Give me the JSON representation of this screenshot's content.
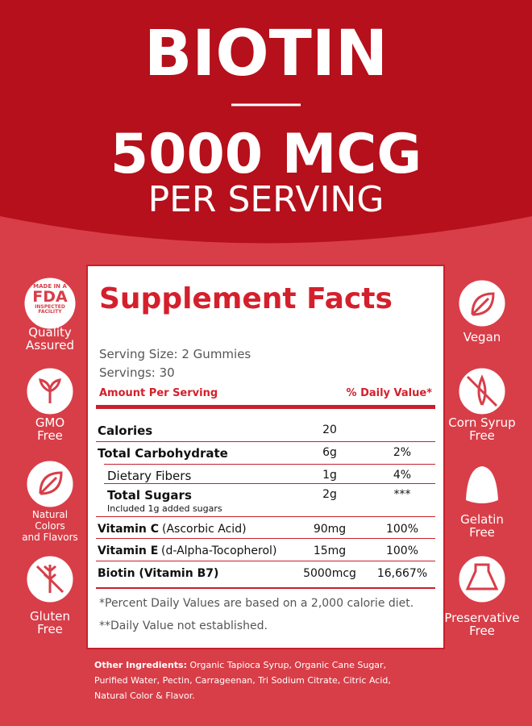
{
  "header": {
    "title": "BIOTIN",
    "dose": "5000 MCG",
    "subtitle": "PER SERVING"
  },
  "left_badges": [
    {
      "seal": [
        "MADE IN A",
        "FDA",
        "INSPECTED FACILITY"
      ],
      "label": [
        "Quality",
        "Assured"
      ]
    },
    {
      "label": [
        "GMO",
        "Free"
      ]
    },
    {
      "label": [
        "Natural",
        "Colors",
        "and Flavors"
      ]
    },
    {
      "label": [
        "Gluten",
        "Free"
      ]
    }
  ],
  "right_badges": [
    {
      "label": [
        "Vegan"
      ]
    },
    {
      "label": [
        "Corn Syrup",
        "Free"
      ]
    },
    {
      "label": [
        "Gelatin",
        "Free"
      ]
    },
    {
      "label": [
        "Preservative",
        "Free"
      ]
    }
  ],
  "facts": {
    "title": "Supplement Facts",
    "serving_size": "Serving Size: 2 Gummies",
    "servings": "Servings: 30",
    "amount_header": "Amount Per Serving",
    "dv_header": "% Daily Value*",
    "rows": [
      {
        "name": "Calories",
        "amount": "20"
      },
      {
        "name": "Total Carbohydrate",
        "amount": "6g",
        "dv": "2%"
      },
      {
        "name": "Dietary Fibers",
        "amount": "1g",
        "dv": "4%"
      },
      {
        "name": "Total Sugars",
        "amount": "2g",
        "dv": "***",
        "note": "Included 1g added sugars"
      },
      {
        "name": "Vitamin C",
        "detail": "(Ascorbic Acid)",
        "amount": "90mg",
        "dv": "100%"
      },
      {
        "name": "Vitamin E",
        "detail": "(d-Alpha-Tocopherol)",
        "amount": "15mg",
        "dv": "100%"
      },
      {
        "name": "Biotin (Vitamin B7)",
        "amount": "5000mcg",
        "dv": "16,667%"
      }
    ],
    "footnotes": [
      "*Percent Daily Values are based on a 2,000 calorie diet.",
      "**Daily Value not established."
    ]
  },
  "ingredients": {
    "label": "Other Ingredients:",
    "lines": [
      "Organic Tapioca Syrup, Organic Cane Sugar,",
      "Purified Water, Pectin, Carrageenan, Tri Sodium Citrate, Citric Acid,",
      "Natural Color & Flavor."
    ]
  }
}
